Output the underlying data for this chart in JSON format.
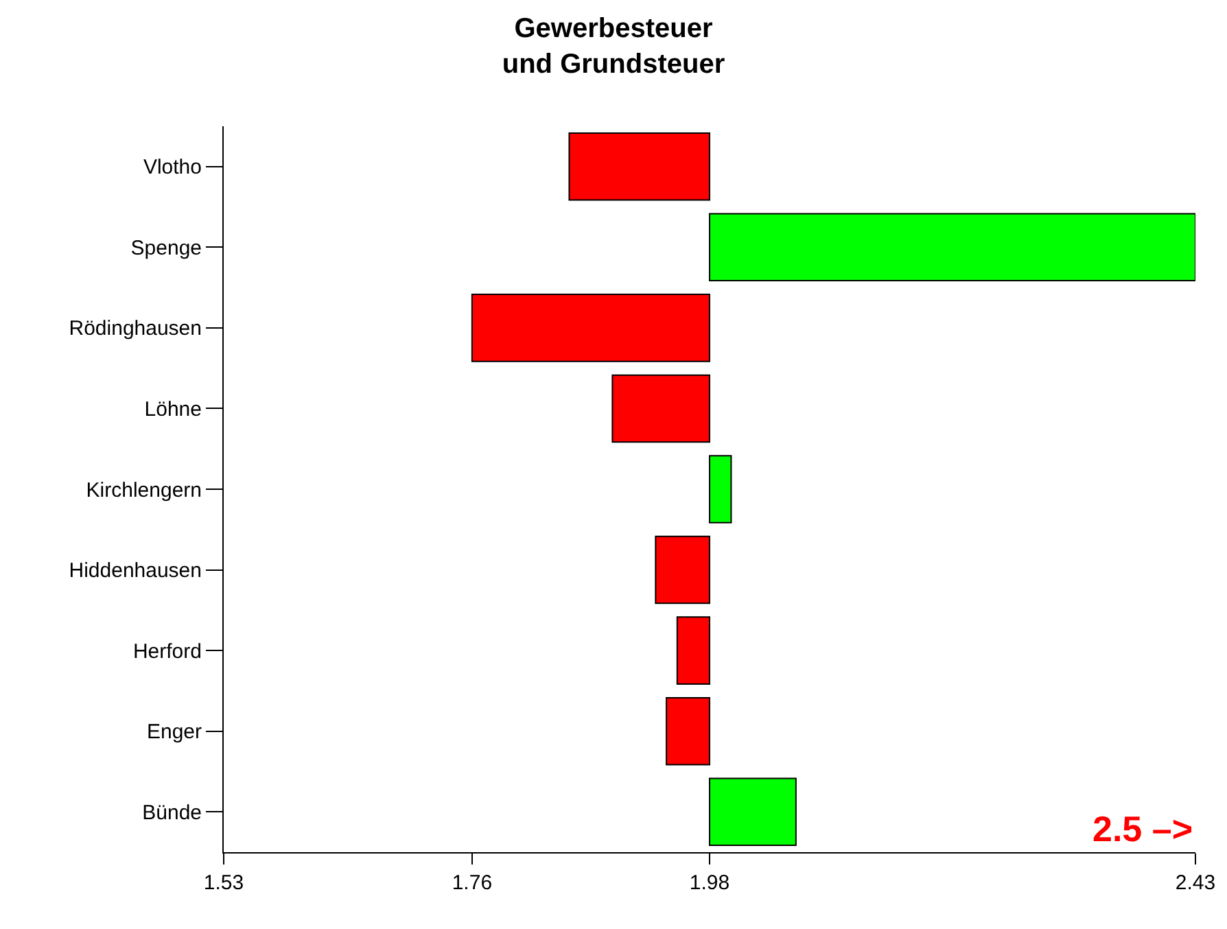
{
  "chart_data": {
    "type": "bar",
    "orientation": "horizontal",
    "title": "Gewerbesteuer\nund Grundsteuer",
    "categories": [
      "Vlotho",
      "Spenge",
      "Rödinghausen",
      "Löhne",
      "Kirchlengern",
      "Hiddenhausen",
      "Herford",
      "Enger",
      "Bünde"
    ],
    "base": [
      1.98,
      1.98,
      1.98,
      1.98,
      1.98,
      1.98,
      1.98,
      1.98,
      1.98
    ],
    "values": [
      -0.13,
      0.45,
      -0.22,
      -0.09,
      0.02,
      -0.05,
      -0.03,
      -0.04,
      0.08
    ],
    "colors": [
      "#ff0000",
      "#00ff00",
      "#ff0000",
      "#ff0000",
      "#00ff00",
      "#ff0000",
      "#ff0000",
      "#ff0000",
      "#00ff00"
    ],
    "xlim": [
      1.53,
      2.43
    ],
    "xticks": [
      1.53,
      1.76,
      1.98,
      2.43
    ],
    "grid": false,
    "annotations": [
      "2.5 –>"
    ]
  }
}
